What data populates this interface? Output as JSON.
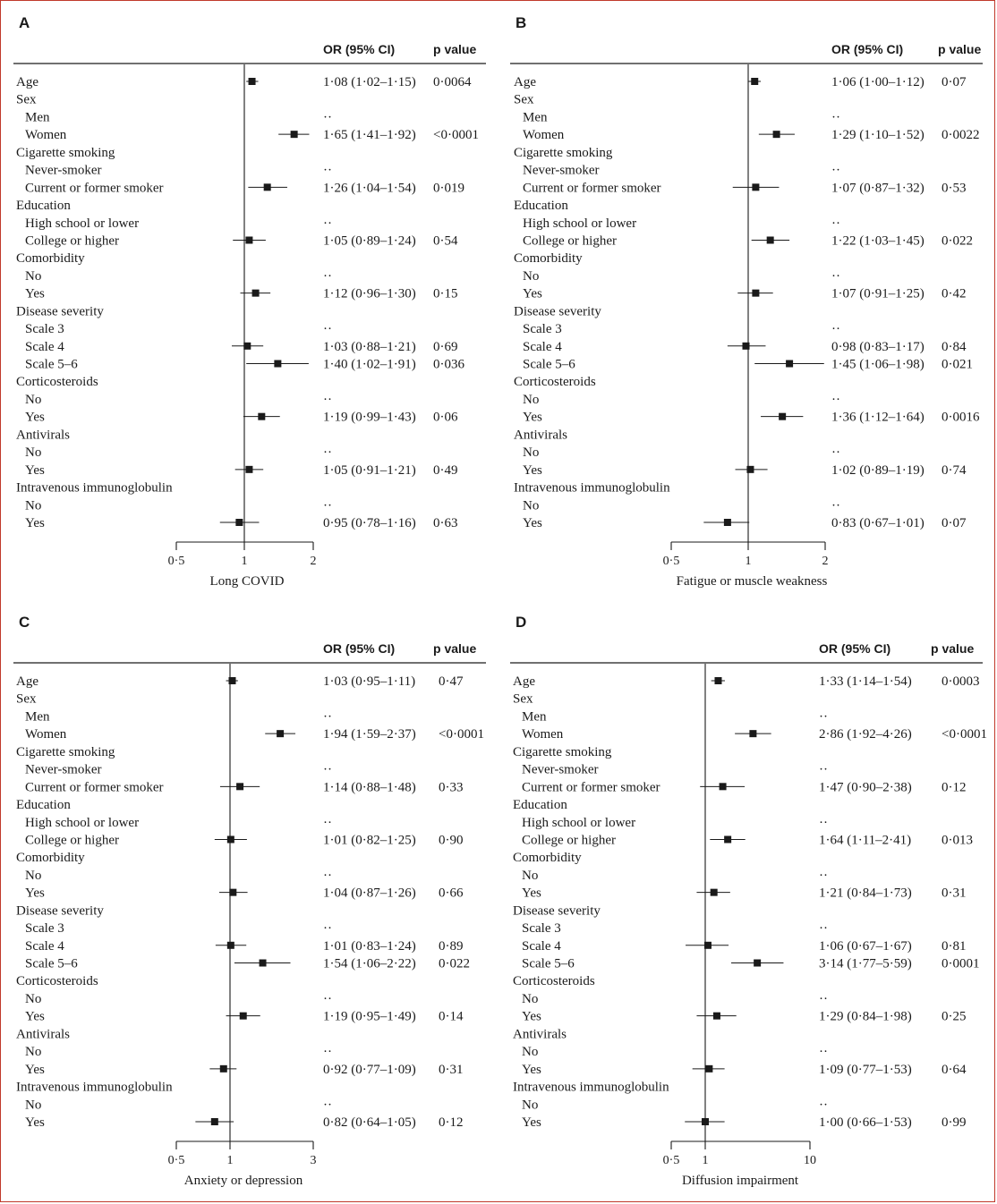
{
  "headers": {
    "or": "OR (95% CI)",
    "p": "p value"
  },
  "row_labels": [
    {
      "text": "Age",
      "indent": false
    },
    {
      "text": "Sex",
      "indent": false
    },
    {
      "text": "Men",
      "indent": true
    },
    {
      "text": "Women",
      "indent": true
    },
    {
      "text": "Cigarette smoking",
      "indent": false
    },
    {
      "text": "Never-smoker",
      "indent": true
    },
    {
      "text": "Current or former smoker",
      "indent": true
    },
    {
      "text": "Education",
      "indent": false
    },
    {
      "text": "High school or lower",
      "indent": true
    },
    {
      "text": "College or higher",
      "indent": true
    },
    {
      "text": "Comorbidity",
      "indent": false
    },
    {
      "text": "No",
      "indent": true
    },
    {
      "text": "Yes",
      "indent": true
    },
    {
      "text": "Disease severity",
      "indent": false
    },
    {
      "text": "Scale 3",
      "indent": true
    },
    {
      "text": "Scale 4",
      "indent": true
    },
    {
      "text": "Scale 5–6",
      "indent": true
    },
    {
      "text": "Corticosteroids",
      "indent": false
    },
    {
      "text": "No",
      "indent": true
    },
    {
      "text": "Yes",
      "indent": true
    },
    {
      "text": "Antivirals",
      "indent": false
    },
    {
      "text": "No",
      "indent": true
    },
    {
      "text": "Yes",
      "indent": true
    },
    {
      "text": "Intravenous immunoglobulin",
      "indent": false
    },
    {
      "text": "No",
      "indent": true
    },
    {
      "text": "Yes",
      "indent": true
    }
  ],
  "chart_data": [
    {
      "type": "forest",
      "panel": "A",
      "xlabel": "Long COVID",
      "xscale": "log",
      "xlim": [
        0.5,
        2
      ],
      "ticks": [
        {
          "v": 0.5,
          "label": "0·5"
        },
        {
          "v": 1,
          "label": "1"
        },
        {
          "v": 2,
          "label": "2"
        }
      ],
      "rows": [
        {
          "or": 1.08,
          "lo": 1.02,
          "hi": 1.15,
          "or_text": "1·08 (1·02–1·15)",
          "p_text": "0·0064"
        },
        null,
        {
          "or_text": "··",
          "p_text": ""
        },
        {
          "or": 1.65,
          "lo": 1.41,
          "hi": 1.92,
          "or_text": "1·65 (1·41–1·92)",
          "p_text": "<0·0001"
        },
        null,
        {
          "or_text": "··",
          "p_text": ""
        },
        {
          "or": 1.26,
          "lo": 1.04,
          "hi": 1.54,
          "or_text": "1·26 (1·04–1·54)",
          "p_text": "0·019"
        },
        null,
        {
          "or_text": "··",
          "p_text": ""
        },
        {
          "or": 1.05,
          "lo": 0.89,
          "hi": 1.24,
          "or_text": "1·05 (0·89–1·24)",
          "p_text": "0·54"
        },
        null,
        {
          "or_text": "··",
          "p_text": ""
        },
        {
          "or": 1.12,
          "lo": 0.96,
          "hi": 1.3,
          "or_text": "1·12 (0·96–1·30)",
          "p_text": "0·15"
        },
        null,
        {
          "or_text": "··",
          "p_text": ""
        },
        {
          "or": 1.03,
          "lo": 0.88,
          "hi": 1.21,
          "or_text": "1·03 (0·88–1·21)",
          "p_text": "0·69"
        },
        {
          "or": 1.4,
          "lo": 1.02,
          "hi": 1.91,
          "or_text": "1·40 (1·02–1·91)",
          "p_text": "0·036"
        },
        null,
        {
          "or_text": "··",
          "p_text": ""
        },
        {
          "or": 1.19,
          "lo": 0.99,
          "hi": 1.43,
          "or_text": "1·19 (0·99–1·43)",
          "p_text": "0·06"
        },
        null,
        {
          "or_text": "··",
          "p_text": ""
        },
        {
          "or": 1.05,
          "lo": 0.91,
          "hi": 1.21,
          "or_text": "1·05 (0·91–1·21)",
          "p_text": "0·49"
        },
        null,
        {
          "or_text": "··",
          "p_text": ""
        },
        {
          "or": 0.95,
          "lo": 0.78,
          "hi": 1.16,
          "or_text": "0·95 (0·78–1·16)",
          "p_text": "0·63"
        }
      ]
    },
    {
      "type": "forest",
      "panel": "B",
      "xlabel": "Fatigue or muscle weakness",
      "xscale": "log",
      "xlim": [
        0.5,
        2
      ],
      "ticks": [
        {
          "v": 0.5,
          "label": "0·5"
        },
        {
          "v": 1,
          "label": "1"
        },
        {
          "v": 2,
          "label": "2"
        }
      ],
      "rows": [
        {
          "or": 1.06,
          "lo": 1.0,
          "hi": 1.12,
          "or_text": "1·06 (1·00–1·12)",
          "p_text": "0·07"
        },
        null,
        {
          "or_text": "··",
          "p_text": ""
        },
        {
          "or": 1.29,
          "lo": 1.1,
          "hi": 1.52,
          "or_text": "1·29 (1·10–1·52)",
          "p_text": "0·0022"
        },
        null,
        {
          "or_text": "··",
          "p_text": ""
        },
        {
          "or": 1.07,
          "lo": 0.87,
          "hi": 1.32,
          "or_text": "1·07 (0·87–1·32)",
          "p_text": "0·53"
        },
        null,
        {
          "or_text": "··",
          "p_text": ""
        },
        {
          "or": 1.22,
          "lo": 1.03,
          "hi": 1.45,
          "or_text": "1·22 (1·03–1·45)",
          "p_text": "0·022"
        },
        null,
        {
          "or_text": "··",
          "p_text": ""
        },
        {
          "or": 1.07,
          "lo": 0.91,
          "hi": 1.25,
          "or_text": "1·07 (0·91–1·25)",
          "p_text": "0·42"
        },
        null,
        {
          "or_text": "··",
          "p_text": ""
        },
        {
          "or": 0.98,
          "lo": 0.83,
          "hi": 1.17,
          "or_text": "0·98 (0·83–1·17)",
          "p_text": "0·84"
        },
        {
          "or": 1.45,
          "lo": 1.06,
          "hi": 1.98,
          "or_text": "1·45 (1·06–1·98)",
          "p_text": "0·021"
        },
        null,
        {
          "or_text": "··",
          "p_text": ""
        },
        {
          "or": 1.36,
          "lo": 1.12,
          "hi": 1.64,
          "or_text": "1·36 (1·12–1·64)",
          "p_text": "0·0016"
        },
        null,
        {
          "or_text": "··",
          "p_text": ""
        },
        {
          "or": 1.02,
          "lo": 0.89,
          "hi": 1.19,
          "or_text": "1·02 (0·89–1·19)",
          "p_text": "0·74"
        },
        null,
        {
          "or_text": "··",
          "p_text": ""
        },
        {
          "or": 0.83,
          "lo": 0.67,
          "hi": 1.01,
          "or_text": "0·83 (0·67–1·01)",
          "p_text": "0·07"
        }
      ]
    },
    {
      "type": "forest",
      "panel": "C",
      "xlabel": "Anxiety or depression",
      "xscale": "log",
      "xlim": [
        0.5,
        3
      ],
      "ticks": [
        {
          "v": 0.5,
          "label": "0·5"
        },
        {
          "v": 1,
          "label": "1"
        },
        {
          "v": 3,
          "label": "3"
        }
      ],
      "rows": [
        {
          "or": 1.03,
          "lo": 0.95,
          "hi": 1.11,
          "or_text": "1·03 (0·95–1·11)",
          "p_text": "0·47"
        },
        null,
        {
          "or_text": "··",
          "p_text": ""
        },
        {
          "or": 1.94,
          "lo": 1.59,
          "hi": 2.37,
          "or_text": "1·94 (1·59–2·37)",
          "p_text": "<0·0001"
        },
        null,
        {
          "or_text": "··",
          "p_text": ""
        },
        {
          "or": 1.14,
          "lo": 0.88,
          "hi": 1.48,
          "or_text": "1·14 (0·88–1·48)",
          "p_text": "0·33"
        },
        null,
        {
          "or_text": "··",
          "p_text": ""
        },
        {
          "or": 1.01,
          "lo": 0.82,
          "hi": 1.25,
          "or_text": "1·01 (0·82–1·25)",
          "p_text": "0·90"
        },
        null,
        {
          "or_text": "··",
          "p_text": ""
        },
        {
          "or": 1.04,
          "lo": 0.87,
          "hi": 1.26,
          "or_text": "1·04 (0·87–1·26)",
          "p_text": "0·66"
        },
        null,
        {
          "or_text": "··",
          "p_text": ""
        },
        {
          "or": 1.01,
          "lo": 0.83,
          "hi": 1.24,
          "or_text": "1·01 (0·83–1·24)",
          "p_text": "0·89"
        },
        {
          "or": 1.54,
          "lo": 1.06,
          "hi": 2.22,
          "or_text": "1·54 (1·06–2·22)",
          "p_text": "0·022"
        },
        null,
        {
          "or_text": "··",
          "p_text": ""
        },
        {
          "or": 1.19,
          "lo": 0.95,
          "hi": 1.49,
          "or_text": "1·19 (0·95–1·49)",
          "p_text": "0·14"
        },
        null,
        {
          "or_text": "··",
          "p_text": ""
        },
        {
          "or": 0.92,
          "lo": 0.77,
          "hi": 1.09,
          "or_text": "0·92 (0·77–1·09)",
          "p_text": "0·31"
        },
        null,
        {
          "or_text": "··",
          "p_text": ""
        },
        {
          "or": 0.82,
          "lo": 0.64,
          "hi": 1.05,
          "or_text": "0·82 (0·64–1·05)",
          "p_text": "0·12"
        }
      ]
    },
    {
      "type": "forest",
      "panel": "D",
      "xlabel": "Diffusion impairment",
      "xscale": "log",
      "xlim": [
        0.5,
        10
      ],
      "ticks": [
        {
          "v": 0.5,
          "label": "0·5"
        },
        {
          "v": 1,
          "label": "1"
        },
        {
          "v": 10,
          "label": "10"
        }
      ],
      "rows": [
        {
          "or": 1.33,
          "lo": 1.14,
          "hi": 1.54,
          "or_text": "1·33 (1·14–1·54)",
          "p_text": "0·0003"
        },
        null,
        {
          "or_text": "··",
          "p_text": ""
        },
        {
          "or": 2.86,
          "lo": 1.92,
          "hi": 4.26,
          "or_text": "2·86 (1·92–4·26)",
          "p_text": "<0·0001"
        },
        null,
        {
          "or_text": "··",
          "p_text": ""
        },
        {
          "or": 1.47,
          "lo": 0.9,
          "hi": 2.38,
          "or_text": "1·47 (0·90–2·38)",
          "p_text": "0·12"
        },
        null,
        {
          "or_text": "··",
          "p_text": ""
        },
        {
          "or": 1.64,
          "lo": 1.11,
          "hi": 2.41,
          "or_text": "1·64 (1·11–2·41)",
          "p_text": "0·013"
        },
        null,
        {
          "or_text": "··",
          "p_text": ""
        },
        {
          "or": 1.21,
          "lo": 0.84,
          "hi": 1.73,
          "or_text": "1·21 (0·84–1·73)",
          "p_text": "0·31"
        },
        null,
        {
          "or_text": "··",
          "p_text": ""
        },
        {
          "or": 1.06,
          "lo": 0.67,
          "hi": 1.67,
          "or_text": "1·06 (0·67–1·67)",
          "p_text": "0·81"
        },
        {
          "or": 3.14,
          "lo": 1.77,
          "hi": 5.59,
          "or_text": "3·14 (1·77–5·59)",
          "p_text": "0·0001"
        },
        null,
        {
          "or_text": "··",
          "p_text": ""
        },
        {
          "or": 1.29,
          "lo": 0.84,
          "hi": 1.98,
          "or_text": "1·29 (0·84–1·98)",
          "p_text": "0·25"
        },
        null,
        {
          "or_text": "··",
          "p_text": ""
        },
        {
          "or": 1.09,
          "lo": 0.77,
          "hi": 1.53,
          "or_text": "1·09 (0·77–1·53)",
          "p_text": "0·64"
        },
        null,
        {
          "or_text": "··",
          "p_text": ""
        },
        {
          "or": 1.0,
          "lo": 0.66,
          "hi": 1.53,
          "or_text": "1·00 (0·66–1·53)",
          "p_text": "0·99"
        }
      ]
    }
  ]
}
